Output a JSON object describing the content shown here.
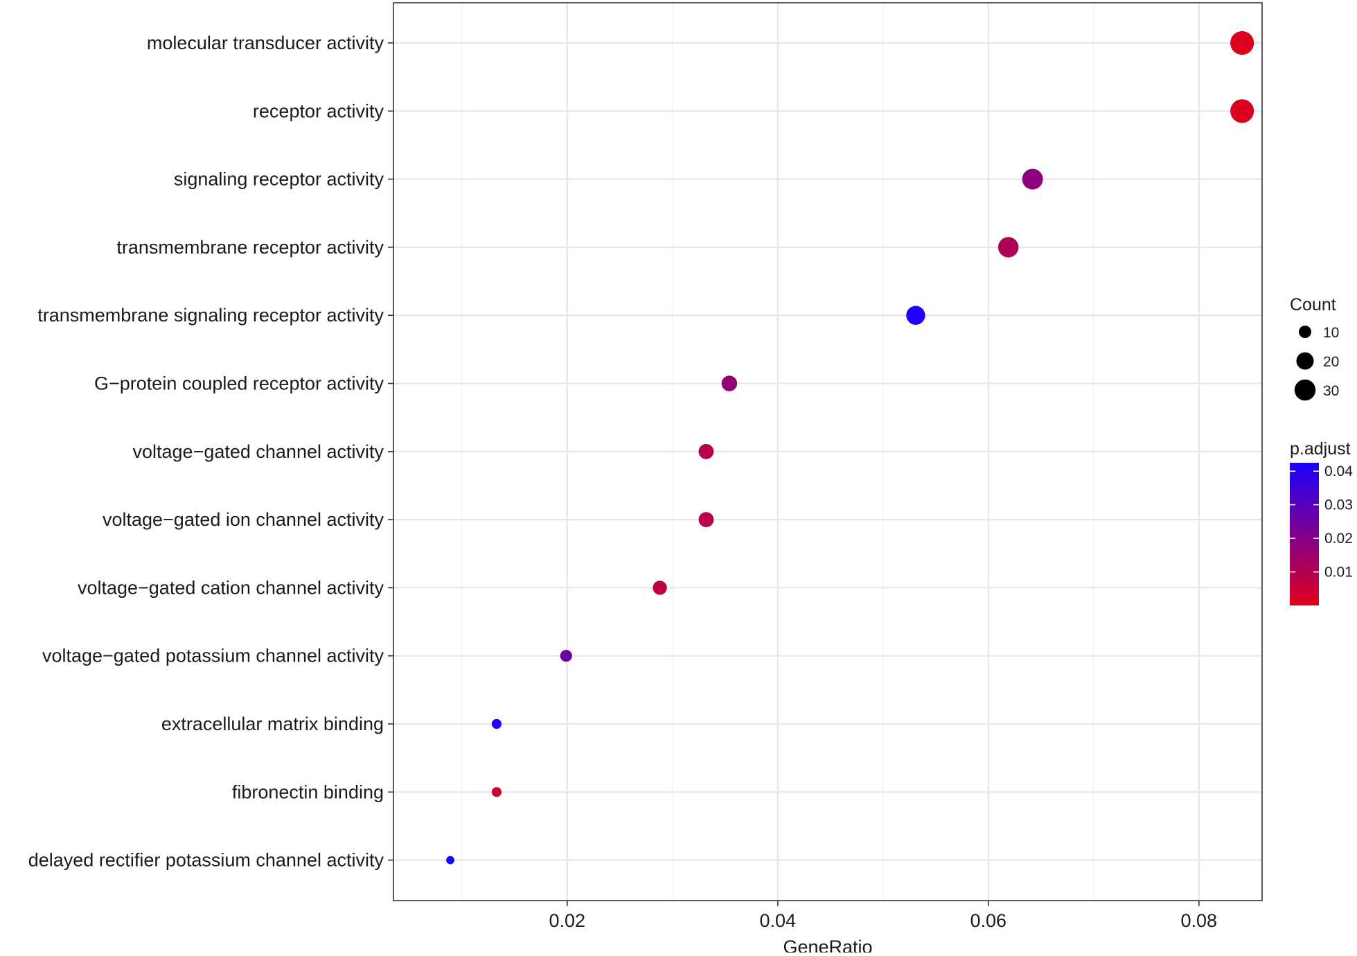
{
  "chart_data": {
    "type": "scatter",
    "title": "",
    "xlabel": "GeneRatio",
    "ylabel": "",
    "xlim": [
      0.0035,
      0.086
    ],
    "x_ticks": [
      0.02,
      0.04,
      0.06,
      0.08
    ],
    "x_tick_labels": [
      "0.02",
      "0.04",
      "0.06",
      "0.08"
    ],
    "grid": true,
    "categories": [
      "molecular transducer activity",
      "receptor activity",
      "signaling receptor activity",
      "transmembrane receptor activity",
      "transmembrane signaling receptor activity",
      "G−protein coupled receptor activity",
      "voltage−gated channel activity",
      "voltage−gated ion channel activity",
      "voltage−gated cation channel activity",
      "voltage−gated potassium channel activity",
      "extracellular matrix binding",
      "fibronectin binding",
      "delayed rectifier potassium channel activity"
    ],
    "series": [
      {
        "x": [
          0.0841,
          0.0841,
          0.0642,
          0.0619,
          0.0531,
          0.0354,
          0.0332,
          0.0332,
          0.0288,
          0.0199,
          0.0133,
          0.0133,
          0.0089
        ],
        "count": [
          38,
          38,
          29,
          28,
          24,
          16,
          15,
          15,
          13,
          9,
          6,
          6,
          4
        ],
        "p_adjust": [
          0.0008,
          0.0008,
          0.018,
          0.011,
          0.042,
          0.017,
          0.009,
          0.009,
          0.007,
          0.025,
          0.04,
          0.004,
          0.044
        ]
      }
    ],
    "legends": {
      "size": {
        "title": "Count",
        "values": [
          10,
          20,
          30
        ],
        "labels": [
          "10",
          "20",
          "30"
        ],
        "position": "right"
      },
      "color": {
        "title": "p.adjust",
        "range": [
          0.0,
          0.0425
        ],
        "ticks": [
          0.04,
          0.03,
          0.02,
          0.01
        ],
        "tick_labels": [
          "0.04",
          "0.03",
          "0.02",
          "0.01"
        ],
        "low_color": "#e0001b",
        "high_color": "#1c00ff",
        "position": "right"
      }
    },
    "colors": {
      "panel_border": "#333333",
      "grid_major": "#e6e6e6",
      "grid_minor": "#f2f2f2",
      "background": "#ffffff"
    }
  }
}
